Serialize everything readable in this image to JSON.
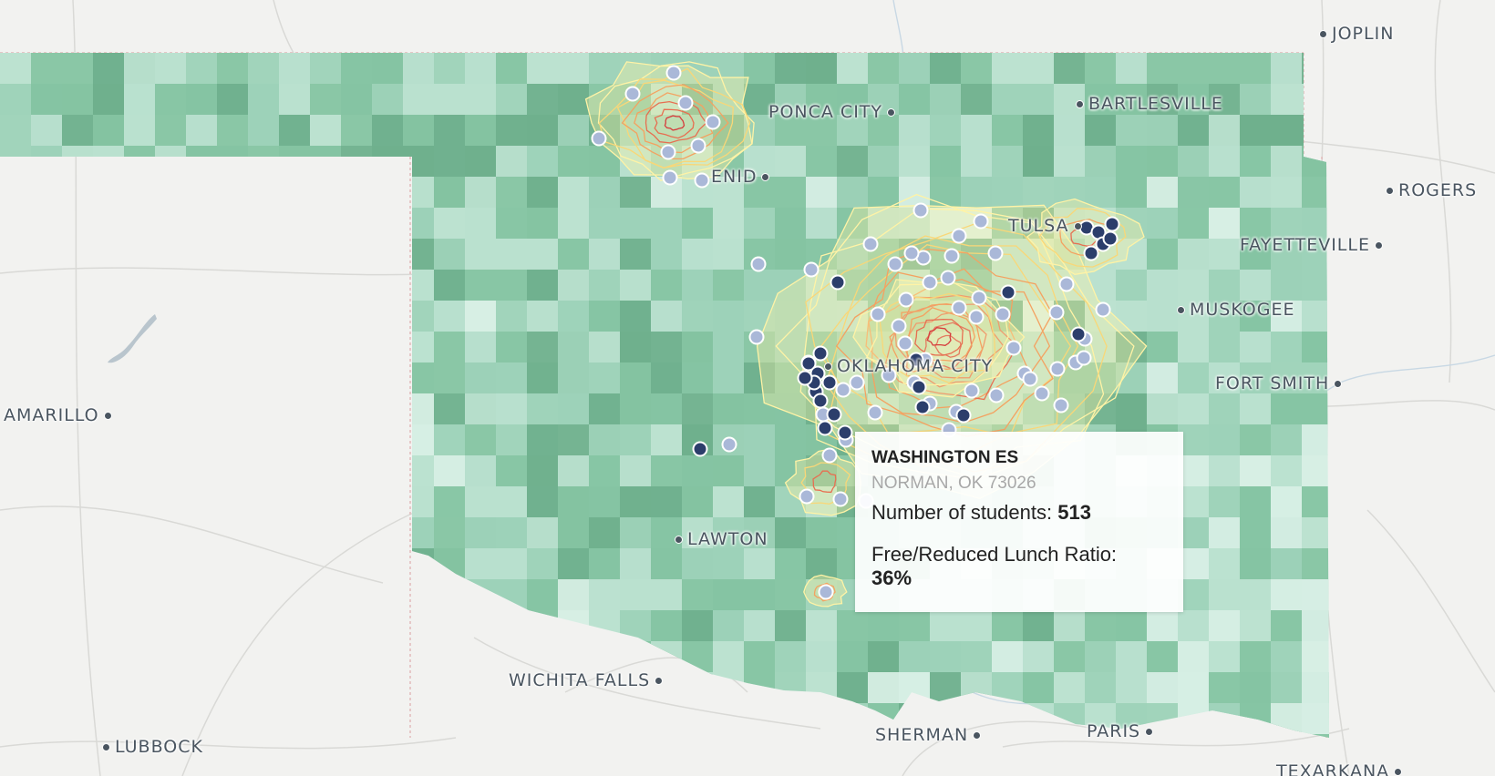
{
  "map": {
    "cities": [
      {
        "id": "joplin",
        "name": "JOPLIN",
        "dot_side": "left"
      },
      {
        "id": "bartlesville",
        "name": "BARTLESVILLE",
        "dot_side": "left"
      },
      {
        "id": "ponca-city",
        "name": "PONCA CITY",
        "dot_side": "right"
      },
      {
        "id": "rogers",
        "name": "ROGERS",
        "dot_side": "left"
      },
      {
        "id": "enid",
        "name": "ENID",
        "dot_side": "right"
      },
      {
        "id": "tulsa",
        "name": "TULSA",
        "dot_side": "right"
      },
      {
        "id": "fayetteville",
        "name": "FAYETTEVILLE",
        "dot_side": "right"
      },
      {
        "id": "muskogee",
        "name": "MUSKOGEE",
        "dot_side": "left"
      },
      {
        "id": "oklahoma-city",
        "name": "OKLAHOMA CITY",
        "dot_side": "left"
      },
      {
        "id": "fort-smith",
        "name": "FORT SMITH",
        "dot_side": "right"
      },
      {
        "id": "amarillo",
        "name": "AMARILLO",
        "dot_side": "right"
      },
      {
        "id": "lawton",
        "name": "LAWTON",
        "dot_side": "left"
      },
      {
        "id": "wichita-falls",
        "name": "WICHITA FALLS",
        "dot_side": "right"
      },
      {
        "id": "sherman",
        "name": "SHERMAN",
        "dot_side": "right"
      },
      {
        "id": "paris",
        "name": "PARIS",
        "dot_side": "right"
      },
      {
        "id": "lubbock",
        "name": "LUBBOCK",
        "dot_side": "left"
      },
      {
        "id": "texarkana",
        "name": "TEXARKANA",
        "dot_side": "right"
      }
    ],
    "colors": {
      "land": "#f2f2f0",
      "state_light": "#e3f2ec",
      "choropleth": [
        "#d6eee4",
        "#b9e0cf",
        "#9dd2b8",
        "#85c4a2",
        "#6fb08d"
      ],
      "heat": [
        "#fff3a6",
        "#f9d778",
        "#f4a261",
        "#e76f51",
        "#d63c3c"
      ],
      "school_dark": "#2c3e6b",
      "school_light": "#aab8d8"
    }
  },
  "tooltip": {
    "school_name": "WASHINGTON ES",
    "location": "NORMAN, OK 73026",
    "students_label": "Number of students:",
    "students_value": "513",
    "lunch_label": "Free/Reduced Lunch Ratio:",
    "lunch_value": "36%"
  }
}
